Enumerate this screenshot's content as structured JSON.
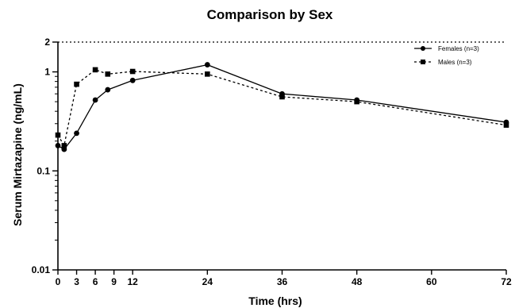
{
  "chart_data": {
    "type": "line",
    "title": "Comparison by Sex",
    "xlabel": "Time (hrs)",
    "ylabel": "Serum Mirtazapine (ng/mL)",
    "xlim": [
      0,
      72
    ],
    "ylim": [
      0.01,
      2
    ],
    "yscale": "log",
    "x_ticks": [
      0,
      3,
      6,
      9,
      12,
      24,
      36,
      48,
      60,
      72
    ],
    "y_ticks": [
      {
        "value": 0.01,
        "label": "0.01"
      },
      {
        "value": 0.1,
        "label": "0.1"
      },
      {
        "value": 1,
        "label": "1"
      },
      {
        "value": 2,
        "label": "2"
      }
    ],
    "reference_line": {
      "y": 2,
      "style": "dotted"
    },
    "legend_position": "top-right",
    "grid": false,
    "series": [
      {
        "name": "Females (n=3)",
        "marker": "circle",
        "line_style": "solid",
        "color": "#000000",
        "points": [
          [
            0,
            0.18
          ],
          [
            1,
            0.165
          ],
          [
            3,
            0.24
          ],
          [
            6,
            0.52
          ],
          [
            8,
            0.66
          ],
          [
            12,
            0.82
          ],
          [
            24,
            1.18
          ],
          [
            36,
            0.6
          ],
          [
            48,
            0.52
          ],
          [
            72,
            0.31
          ]
        ]
      },
      {
        "name": "Males (n=3)",
        "marker": "square",
        "line_style": "dashed",
        "color": "#000000",
        "points": [
          [
            0,
            0.23
          ],
          [
            1,
            0.18
          ],
          [
            3,
            0.75
          ],
          [
            6,
            1.05
          ],
          [
            8,
            0.95
          ],
          [
            12,
            1.01
          ],
          [
            24,
            0.95
          ],
          [
            36,
            0.56
          ],
          [
            48,
            0.5
          ],
          [
            72,
            0.29
          ]
        ]
      }
    ]
  }
}
